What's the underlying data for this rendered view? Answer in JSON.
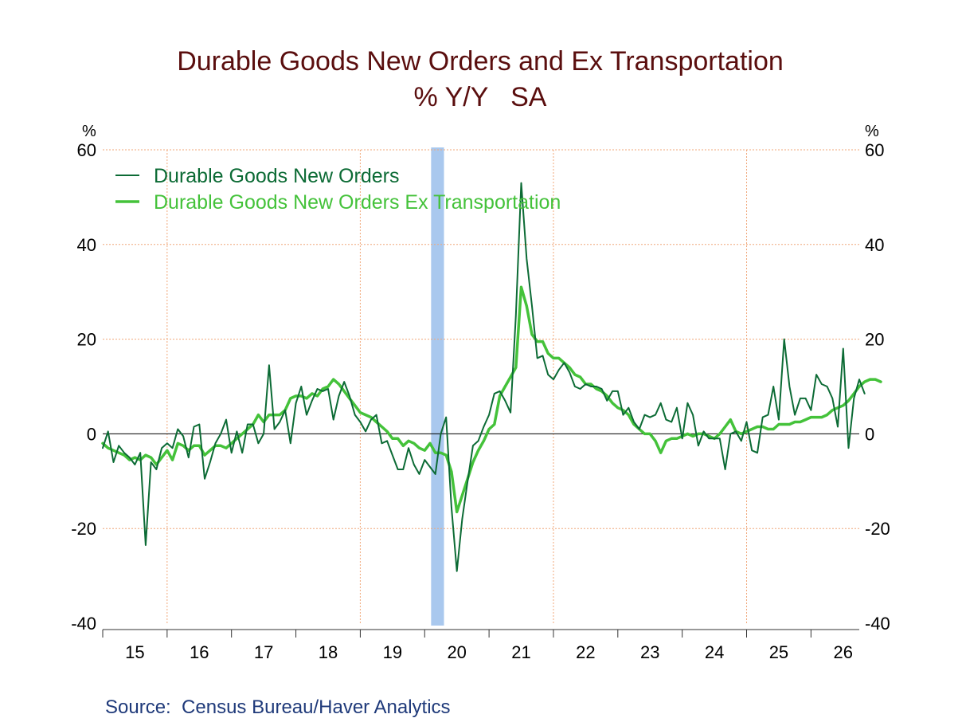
{
  "chart_data": {
    "type": "line",
    "title": "Durable Goods New Orders and Ex Transportation",
    "subtitle": "% Y/Y   SA",
    "ylabel_left": "%",
    "ylabel_right": "%",
    "ylim": [
      -40,
      60
    ],
    "yticks": [
      "60",
      "40",
      "20",
      "0",
      "-20",
      "-40"
    ],
    "xlim": [
      2015,
      2026.75
    ],
    "xticks": [
      "15",
      "16",
      "17",
      "18",
      "19",
      "20",
      "21",
      "22",
      "23",
      "24",
      "25",
      "26"
    ],
    "grid": true,
    "legend_position": "top-left",
    "recession_band": [
      2020.1,
      2020.3
    ],
    "source": "Source:  Census Bureau/Haver Analytics",
    "series": [
      {
        "name": "Durable Goods New Orders",
        "color": "#0c6b35",
        "x_start": 2015.0,
        "step": "monthly",
        "values": [
          -3,
          0.5,
          -6,
          -2.5,
          -4,
          -5,
          -6.5,
          -4,
          -23.5,
          -6,
          -7.5,
          -3,
          -2,
          -3,
          1,
          -0.5,
          -5,
          1.5,
          2,
          -9.5,
          -6,
          -2,
          0,
          3,
          -4,
          0.5,
          -4,
          2,
          2,
          -2,
          0,
          14.5,
          1,
          2.5,
          5,
          -2,
          6.5,
          10,
          4,
          7,
          9.5,
          9,
          9.5,
          3,
          8,
          11,
          8,
          4,
          2.5,
          0.5,
          3,
          4,
          -2,
          -1.5,
          -4.5,
          -7.5,
          -7.5,
          -3,
          -6.5,
          -8.5,
          -5.5,
          -7,
          -8.5,
          0,
          3.5,
          -15.5,
          -29,
          -18,
          -10,
          -2.5,
          -1.5,
          1.5,
          4,
          8.5,
          9,
          7,
          4.5,
          25,
          53,
          37,
          27,
          16,
          16.5,
          12.5,
          11.5,
          13.5,
          15,
          13,
          10,
          9.5,
          10.5,
          10,
          10,
          9.5,
          7,
          9,
          9,
          4,
          5.5,
          2.5,
          1,
          4,
          3.5,
          4,
          6.5,
          3,
          2.5,
          5.5,
          -1,
          6.5,
          4,
          -2.5,
          0.5,
          -1,
          -1,
          -1,
          -7.5,
          0,
          0.5,
          -1.5,
          2.5,
          -3.5,
          -4,
          3.5,
          4,
          10,
          3,
          20,
          10,
          4,
          7.5,
          7.5,
          5,
          12.5,
          10.5,
          10,
          7.5,
          1.5,
          18,
          -3,
          7.5,
          11.5,
          8.5
        ]
      },
      {
        "name": "Durable Goods New Orders Ex Transportation",
        "color": "#44c23a",
        "x_start": 2015.0,
        "step": "monthly",
        "values": [
          -2,
          -3,
          -3.5,
          -4,
          -4.5,
          -5.5,
          -5,
          -5.5,
          -4.5,
          -5,
          -6.5,
          -5,
          -3.5,
          -5.5,
          -2,
          -2.5,
          -3.5,
          -2.5,
          -2.5,
          -4.5,
          -3.5,
          -2.5,
          -2.5,
          -3,
          -2,
          -1,
          0,
          1,
          2,
          4,
          2.5,
          4,
          4,
          4,
          5,
          7.5,
          8,
          8,
          7.5,
          8.5,
          8,
          9.5,
          10,
          11.5,
          10.5,
          9,
          7.5,
          6,
          4.5,
          4,
          3.5,
          2.5,
          1.5,
          0.5,
          -1,
          -1,
          -2.5,
          -1.5,
          -2,
          -3,
          -3.5,
          -2,
          -4,
          -4,
          -4.5,
          -8,
          -16.5,
          -13,
          -9.5,
          -6,
          -3.5,
          -1.5,
          1,
          2,
          8,
          10,
          12,
          14,
          31,
          27,
          21,
          19.5,
          19.5,
          17,
          16,
          16,
          15,
          14,
          12.5,
          12,
          10.5,
          10.5,
          9.5,
          9,
          8,
          6.5,
          5.5,
          5,
          4,
          2,
          1,
          0,
          0,
          -1.5,
          -4,
          -1.5,
          -1,
          -1,
          -0.5,
          0,
          -0.5,
          0,
          0,
          -0.5,
          -1,
          0,
          1.5,
          3,
          0.5,
          0,
          0.5,
          1,
          1.5,
          1.5,
          1,
          1,
          2,
          2,
          2,
          2.5,
          2.5,
          3,
          3.5,
          3.5,
          3.5,
          4,
          5,
          5.5,
          6,
          7,
          8.5,
          10,
          11,
          11.5,
          11.5,
          11
        ]
      }
    ]
  }
}
